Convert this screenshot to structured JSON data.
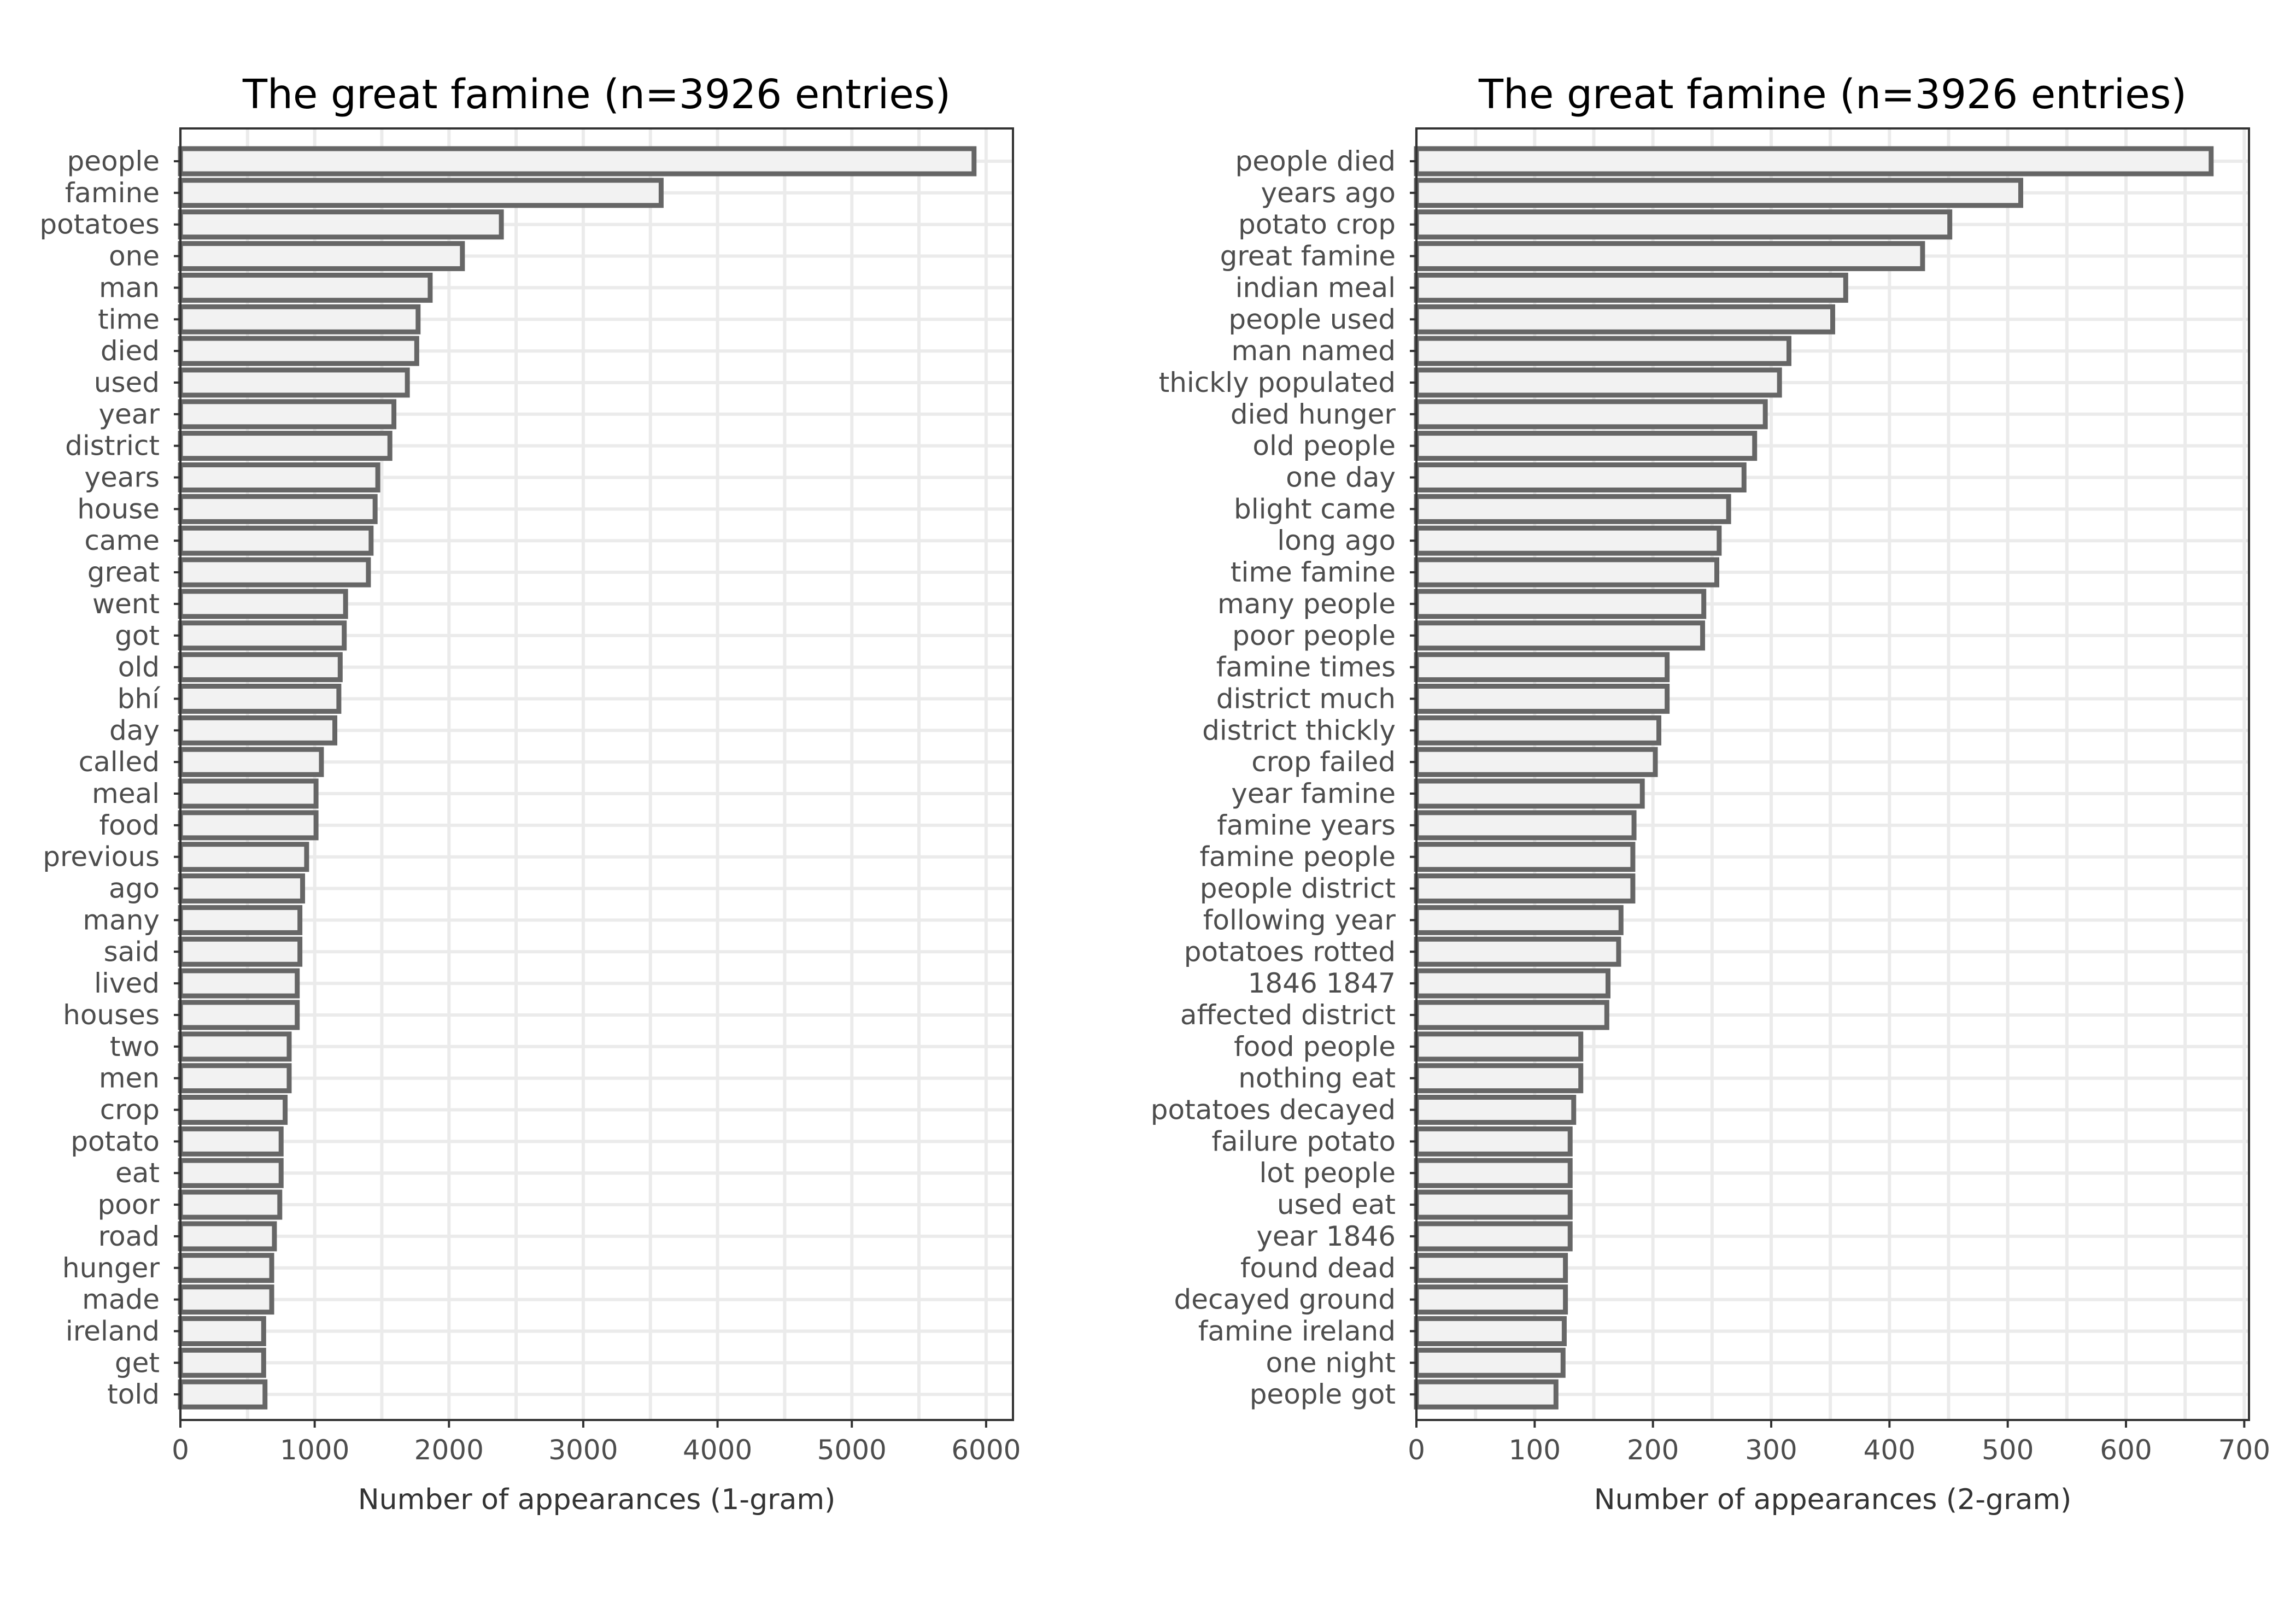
{
  "colors": {
    "bar_fill": "#f2f2f2",
    "bar_edge": "#666666",
    "grid": "#ebebeb",
    "frame": "#333333"
  },
  "chart_data": [
    {
      "type": "bar",
      "orientation": "horizontal",
      "title": "The great famine (n=3926 entries)",
      "xlabel": "Number of appearances (1-gram)",
      "ylabel": "",
      "xlim": [
        0,
        6200
      ],
      "xticks": [
        "0",
        "1000",
        "2000",
        "3000",
        "4000",
        "5000",
        "6000"
      ],
      "xtick_values": [
        0,
        1000,
        2000,
        3000,
        4000,
        5000,
        6000
      ],
      "grid": true,
      "categories": [
        "people",
        "famine",
        "potatoes",
        "one",
        "man",
        "time",
        "died",
        "used",
        "year",
        "district",
        "years",
        "house",
        "came",
        "great",
        "went",
        "got",
        "old",
        "bhí",
        "day",
        "called",
        "meal",
        "food",
        "previous",
        "ago",
        "many",
        "said",
        "lived",
        "houses",
        "two",
        "men",
        "crop",
        "potato",
        "eat",
        "poor",
        "road",
        "hunger",
        "made",
        "ireland",
        "get",
        "told"
      ],
      "values": [
        5910,
        3580,
        2390,
        2100,
        1860,
        1770,
        1760,
        1690,
        1590,
        1560,
        1470,
        1450,
        1420,
        1400,
        1230,
        1220,
        1190,
        1180,
        1150,
        1050,
        1010,
        1010,
        940,
        910,
        890,
        890,
        870,
        870,
        810,
        810,
        780,
        750,
        750,
        740,
        700,
        680,
        680,
        620,
        620,
        630
      ]
    },
    {
      "type": "bar",
      "orientation": "horizontal",
      "title": "The great famine (n=3926 entries)",
      "xlabel": "Number of appearances (2-gram)",
      "ylabel": "",
      "xlim": [
        0,
        704
      ],
      "xticks": [
        "0",
        "100",
        "200",
        "300",
        "400",
        "500",
        "600",
        "700"
      ],
      "xtick_values": [
        0,
        100,
        200,
        300,
        400,
        500,
        600,
        700
      ],
      "grid": true,
      "categories": [
        "people died",
        "years ago",
        "potato crop",
        "great famine",
        "indian meal",
        "people used",
        "man named",
        "thickly populated",
        "died hunger",
        "old people",
        "one day",
        "blight came",
        "long ago",
        "time famine",
        "many people",
        "poor people",
        "famine times",
        "district much",
        "district thickly",
        "crop failed",
        "year famine",
        "famine years",
        "famine people",
        "people district",
        "following year",
        "potatoes rotted",
        "1846 1847",
        "affected district",
        "food people",
        "nothing eat",
        "potatoes decayed",
        "failure potato",
        "lot people",
        "used eat",
        "year 1846",
        "found dead",
        "decayed ground",
        "famine ireland",
        "one night",
        "people got"
      ],
      "values": [
        672,
        511,
        451,
        428,
        363,
        352,
        315,
        307,
        295,
        286,
        277,
        264,
        256,
        254,
        243,
        242,
        212,
        212,
        205,
        202,
        191,
        184,
        183,
        183,
        173,
        171,
        162,
        161,
        139,
        139,
        133,
        130,
        130,
        130,
        130,
        126,
        126,
        125,
        124,
        118
      ]
    }
  ]
}
